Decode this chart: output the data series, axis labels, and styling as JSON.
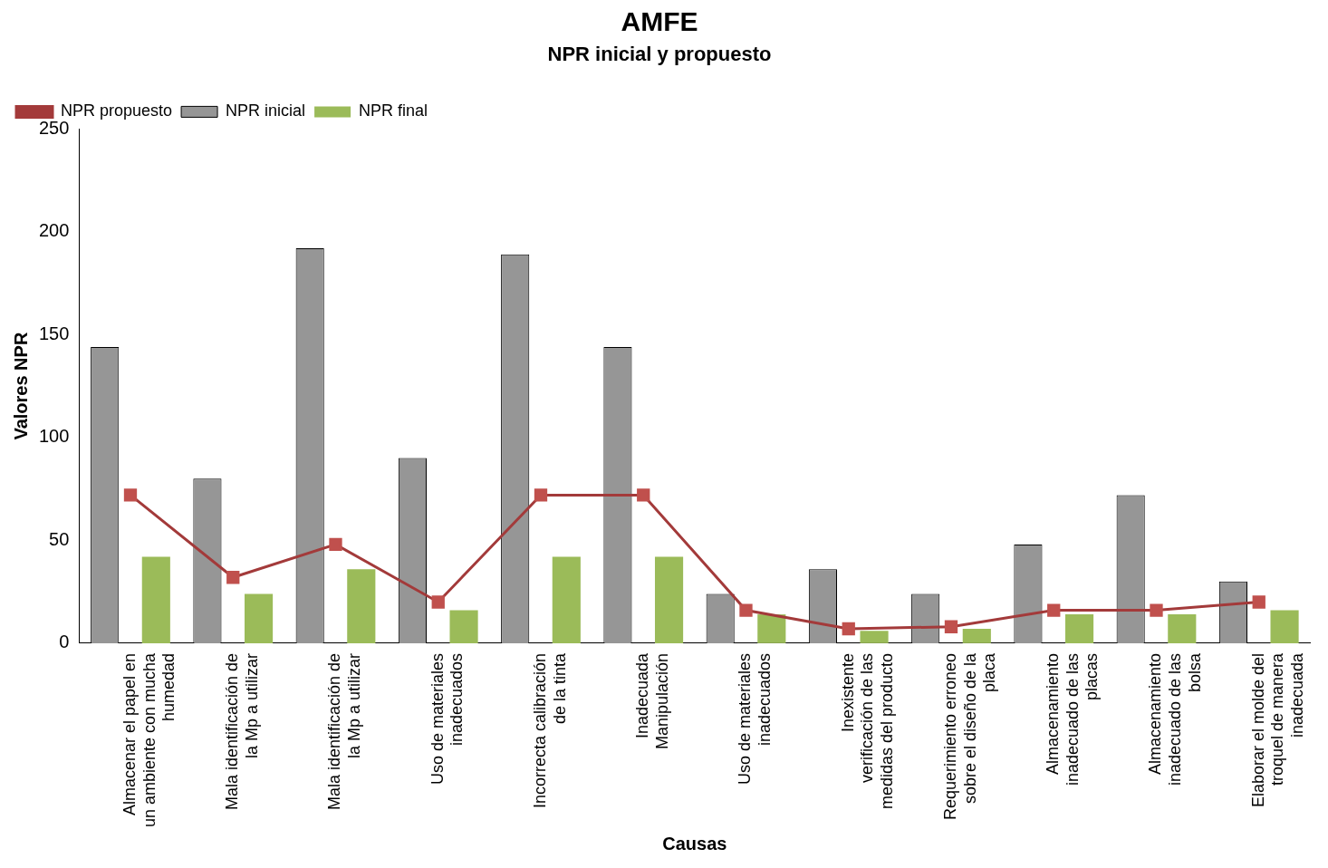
{
  "chart_data": {
    "type": "bar",
    "title": "AMFE",
    "subtitle": "NPR inicial y propuesto",
    "xlabel": "Causas",
    "ylabel": "Valores NPR",
    "categories": [
      "Almacenar el papel en un ambiente con mucha humedad",
      "Mala identificación de la Mp a utilizar",
      "Mala identificación de la Mp a utilizar",
      "Uso de materiales inadecuados",
      "Incorrecta calibración de la tinta",
      "Inadecuada Manipulación",
      "Uso de materiales inadecuados",
      "Inexistente verificación de las medidas del producto",
      "Requerimiento erroneo sobre el diseño de la placa",
      "Almacenamiento inadecuado de las placas",
      "Almacenamiento inadecuado de las bolsa",
      "Elaborar el molde del troquel de manera inadecuada"
    ],
    "series": [
      {
        "name": "NPR inicial",
        "color": "#969696",
        "values": [
          144,
          80,
          192,
          90,
          189,
          144,
          24,
          36,
          24,
          48,
          72,
          30
        ]
      },
      {
        "name": "NPR final",
        "color": "#9bbb59",
        "values": [
          42,
          24,
          36,
          16,
          42,
          42,
          14,
          6,
          7,
          14,
          14,
          16
        ]
      },
      {
        "name": "NPR propuesto",
        "type": "line",
        "color": "#a33a3a",
        "marker": "square",
        "values": [
          72,
          32,
          48,
          20,
          72,
          72,
          16,
          7,
          8,
          16,
          16,
          20
        ]
      }
    ],
    "ylim": [
      0,
      250
    ],
    "yticks": [
      0,
      50,
      100,
      150,
      200,
      250
    ],
    "grid": false,
    "legend": "top left"
  }
}
